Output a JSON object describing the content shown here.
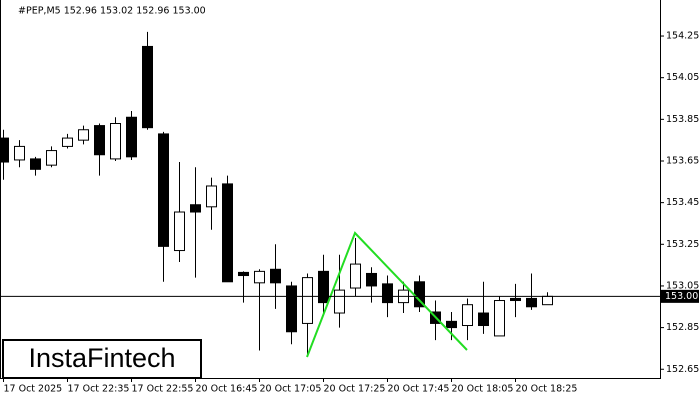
{
  "chart_data": {
    "type": "candlestick",
    "title": "#PEP,M5  152.96 153.02 152.96 153.00",
    "watermark": "InstaFintech",
    "categories": [
      "17 Oct 2025",
      null,
      null,
      null,
      "17 Oct 22:35",
      null,
      null,
      null,
      "17 Oct 22:55",
      null,
      null,
      null,
      "20 Oct 16:45",
      null,
      null,
      null,
      "20 Oct 17:05",
      null,
      null,
      null,
      "20 Oct 17:25",
      null,
      null,
      null,
      "20 Oct 17:45",
      null,
      null,
      null,
      "20 Oct 18:05",
      null,
      null,
      null,
      "20 Oct 18:25",
      null,
      null
    ],
    "open": [
      153.76,
      153.655,
      153.66,
      153.63,
      153.72,
      153.75,
      153.82,
      153.66,
      153.86,
      154.2,
      153.78,
      153.22,
      153.44,
      153.43,
      153.54,
      153.115,
      153.065,
      153.13,
      153.05,
      152.87,
      153.12,
      152.92,
      153.04,
      153.11,
      153.06,
      152.97,
      153.07,
      152.925,
      152.88,
      152.86,
      152.92,
      152.81,
      152.99,
      152.99,
      152.96
    ],
    "high": [
      153.8,
      153.75,
      153.67,
      153.72,
      153.78,
      153.82,
      153.83,
      153.86,
      153.89,
      154.27,
      153.79,
      153.645,
      153.62,
      153.57,
      153.58,
      153.12,
      153.13,
      153.25,
      153.07,
      153.11,
      153.2,
      153.2,
      153.28,
      153.14,
      153.1,
      153.07,
      153.1,
      152.98,
      152.925,
      152.99,
      153.07,
      153.0,
      153.06,
      153.11,
      153.02
    ],
    "low": [
      153.56,
      153.62,
      153.58,
      153.62,
      153.71,
      153.73,
      153.58,
      153.65,
      153.655,
      153.8,
      153.07,
      153.165,
      153.09,
      153.32,
      153.07,
      152.97,
      152.74,
      152.94,
      152.77,
      152.71,
      152.92,
      152.85,
      153.0,
      152.97,
      152.9,
      152.92,
      152.925,
      152.79,
      152.79,
      152.79,
      152.82,
      152.81,
      152.9,
      152.935,
      152.96
    ],
    "close": [
      153.645,
      153.72,
      153.61,
      153.7,
      153.76,
      153.8,
      153.68,
      153.83,
      153.67,
      153.81,
      153.24,
      153.405,
      153.405,
      153.53,
      153.07,
      153.1,
      153.12,
      153.065,
      152.83,
      153.09,
      152.97,
      153.03,
      153.155,
      153.05,
      152.97,
      153.03,
      152.95,
      152.87,
      152.85,
      152.96,
      152.86,
      152.98,
      152.98,
      152.95,
      153.0
    ],
    "up_color": "#ffffff",
    "down_color": "#000000",
    "ylim": [
      152.608,
      154.423
    ],
    "yticks": [
      154.25,
      154.05,
      153.85,
      153.65,
      153.45,
      153.25,
      153.05,
      152.85,
      152.65
    ],
    "current_price": {
      "value": 153.0,
      "label": "153.00"
    }
  }
}
